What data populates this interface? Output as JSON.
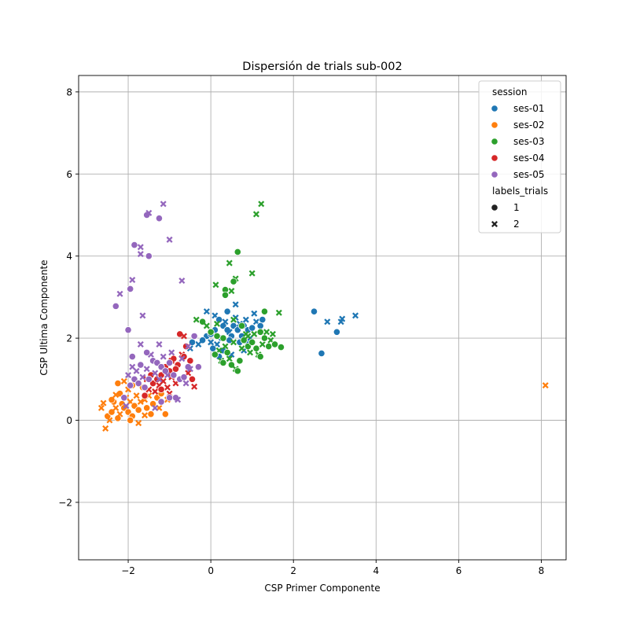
{
  "chart_data": {
    "type": "scatter",
    "title": "Dispersión de trials sub-002",
    "xlabel": "CSP Primer Componente",
    "ylabel": "CSP Ultima Componente",
    "xlim": [
      -3.2,
      8.6
    ],
    "ylim": [
      -3.4,
      8.4
    ],
    "x_ticks": [
      -2,
      0,
      2,
      4,
      6,
      8
    ],
    "y_ticks": [
      -2,
      0,
      2,
      4,
      6,
      8
    ],
    "x_tick_labels": [
      "−2",
      "0",
      "2",
      "4",
      "6",
      "8"
    ],
    "y_tick_labels": [
      "−2",
      "0",
      "2",
      "4",
      "6",
      "8"
    ],
    "grid": true,
    "legend": {
      "placement": "top-right",
      "hue_title": "session",
      "style_title": "labels_trials",
      "style_entries": [
        {
          "label": "1",
          "marker": "circle"
        },
        {
          "label": "2",
          "marker": "x"
        }
      ]
    },
    "series": [
      {
        "name": "ses-01",
        "color": "#1f77b4",
        "points": [
          [
            0.1,
            2.55,
            2
          ],
          [
            0.2,
            2.45,
            1
          ],
          [
            0.3,
            2.3,
            1
          ],
          [
            0.35,
            2.4,
            2
          ],
          [
            0.4,
            2.2,
            1
          ],
          [
            0.45,
            2.15,
            2
          ],
          [
            0.5,
            2.05,
            1
          ],
          [
            0.55,
            2.3,
            1
          ],
          [
            0.6,
            2.5,
            2
          ],
          [
            0.65,
            2.2,
            1
          ],
          [
            0.7,
            2.35,
            2
          ],
          [
            0.75,
            2.05,
            1
          ],
          [
            0.8,
            2.3,
            1
          ],
          [
            0.85,
            2.45,
            2
          ],
          [
            0.9,
            2.2,
            1
          ],
          [
            0.95,
            2.0,
            2
          ],
          [
            1.0,
            2.25,
            1
          ],
          [
            1.05,
            2.6,
            2
          ],
          [
            1.1,
            2.4,
            2
          ],
          [
            1.2,
            2.3,
            1
          ],
          [
            1.25,
            2.45,
            1
          ],
          [
            0.25,
            2.0,
            1
          ],
          [
            0.15,
            1.85,
            2
          ],
          [
            0.05,
            1.75,
            1
          ],
          [
            0.0,
            1.9,
            2
          ],
          [
            -0.1,
            2.05,
            1
          ],
          [
            -0.2,
            1.95,
            1
          ],
          [
            -0.3,
            1.85,
            2
          ],
          [
            -0.45,
            1.9,
            1
          ],
          [
            -0.5,
            1.75,
            2
          ],
          [
            0.6,
            2.82,
            2
          ],
          [
            0.4,
            2.65,
            1
          ],
          [
            0.3,
            1.7,
            1
          ],
          [
            0.5,
            1.6,
            2
          ],
          [
            0.2,
            1.55,
            1
          ],
          [
            0.7,
            1.9,
            1
          ],
          [
            0.1,
            2.2,
            1
          ],
          [
            0.0,
            2.1,
            1
          ],
          [
            -0.1,
            2.65,
            2
          ],
          [
            0.45,
            1.95,
            1
          ],
          [
            0.8,
            1.7,
            2
          ],
          [
            0.9,
            1.85,
            1
          ],
          [
            2.5,
            2.65,
            1
          ],
          [
            2.68,
            1.63,
            1
          ],
          [
            2.82,
            2.4,
            2
          ],
          [
            3.05,
            2.15,
            1
          ],
          [
            3.15,
            2.4,
            2
          ],
          [
            3.18,
            2.47,
            2
          ],
          [
            3.5,
            2.55,
            2
          ]
        ]
      },
      {
        "name": "ses-02",
        "color": "#ff7f0e",
        "points": [
          [
            -2.65,
            0.3,
            2
          ],
          [
            -2.6,
            0.42,
            2
          ],
          [
            -2.55,
            -0.2,
            2
          ],
          [
            -2.5,
            0.1,
            1
          ],
          [
            -2.45,
            0.0,
            2
          ],
          [
            -2.4,
            0.2,
            1
          ],
          [
            -2.35,
            0.45,
            1
          ],
          [
            -2.3,
            0.3,
            2
          ],
          [
            -2.25,
            0.05,
            1
          ],
          [
            -2.2,
            0.15,
            2
          ],
          [
            -2.15,
            0.4,
            1
          ],
          [
            -2.1,
            0.3,
            1
          ],
          [
            -2.05,
            0.55,
            2
          ],
          [
            -2.0,
            0.2,
            1
          ],
          [
            -1.95,
            0.45,
            2
          ],
          [
            -1.9,
            0.1,
            1
          ],
          [
            -1.85,
            0.35,
            1
          ],
          [
            -1.8,
            0.6,
            2
          ],
          [
            -1.75,
            0.25,
            1
          ],
          [
            -1.7,
            0.45,
            2
          ],
          [
            -1.65,
            0.8,
            1
          ],
          [
            -1.6,
            0.5,
            2
          ],
          [
            -1.55,
            0.3,
            1
          ],
          [
            -1.5,
            0.6,
            2
          ],
          [
            -1.45,
            0.15,
            1
          ],
          [
            -1.4,
            0.4,
            1
          ],
          [
            -1.35,
            0.7,
            2
          ],
          [
            -1.3,
            0.55,
            1
          ],
          [
            -1.25,
            0.3,
            2
          ],
          [
            -1.2,
            0.65,
            1
          ],
          [
            -1.1,
            0.15,
            1
          ],
          [
            -1.05,
            0.5,
            2
          ],
          [
            -2.25,
            0.9,
            1
          ],
          [
            -2.1,
            0.95,
            2
          ],
          [
            -2.2,
            0.65,
            1
          ],
          [
            -2.0,
            0.75,
            2
          ],
          [
            -1.9,
            0.85,
            1
          ],
          [
            -1.75,
            -0.07,
            2
          ],
          [
            -2.4,
            0.5,
            1
          ],
          [
            -2.3,
            0.62,
            2
          ],
          [
            -1.95,
            0.0,
            1
          ],
          [
            -1.6,
            0.12,
            2
          ],
          [
            8.1,
            0.85,
            2
          ]
        ]
      },
      {
        "name": "ses-03",
        "color": "#2ca02c",
        "points": [
          [
            0.3,
            2.0,
            1
          ],
          [
            0.35,
            1.8,
            2
          ],
          [
            0.4,
            1.65,
            1
          ],
          [
            0.45,
            1.5,
            2
          ],
          [
            0.5,
            1.35,
            1
          ],
          [
            0.55,
            1.9,
            2
          ],
          [
            0.6,
            1.25,
            2
          ],
          [
            0.65,
            1.2,
            1
          ],
          [
            0.7,
            1.45,
            1
          ],
          [
            0.75,
            1.75,
            2
          ],
          [
            0.8,
            1.95,
            1
          ],
          [
            0.85,
            2.1,
            2
          ],
          [
            0.9,
            1.8,
            1
          ],
          [
            0.95,
            1.65,
            2
          ],
          [
            1.0,
            1.9,
            1
          ],
          [
            1.05,
            2.1,
            2
          ],
          [
            1.1,
            1.75,
            1
          ],
          [
            1.15,
            1.6,
            2
          ],
          [
            1.2,
            1.55,
            1
          ],
          [
            1.25,
            1.85,
            2
          ],
          [
            1.3,
            2.0,
            1
          ],
          [
            1.35,
            2.15,
            2
          ],
          [
            1.4,
            1.8,
            1
          ],
          [
            1.45,
            1.95,
            2
          ],
          [
            1.5,
            2.1,
            2
          ],
          [
            1.55,
            1.85,
            1
          ],
          [
            1.7,
            1.78,
            1
          ],
          [
            1.65,
            2.62,
            2
          ],
          [
            1.3,
            2.65,
            1
          ],
          [
            1.0,
            3.58,
            2
          ],
          [
            1.1,
            5.02,
            2
          ],
          [
            1.22,
            5.27,
            2
          ],
          [
            0.65,
            4.1,
            1
          ],
          [
            0.6,
            3.45,
            2
          ],
          [
            0.55,
            3.38,
            1
          ],
          [
            0.5,
            3.15,
            2
          ],
          [
            0.45,
            3.83,
            2
          ],
          [
            0.35,
            3.18,
            1
          ],
          [
            0.35,
            3.05,
            1
          ],
          [
            0.12,
            3.3,
            2
          ],
          [
            -0.35,
            2.45,
            2
          ],
          [
            -0.2,
            2.4,
            1
          ],
          [
            -0.1,
            2.3,
            2
          ],
          [
            0.0,
            2.15,
            1
          ],
          [
            0.15,
            2.05,
            1
          ],
          [
            0.2,
            1.7,
            2
          ],
          [
            0.1,
            1.6,
            1
          ],
          [
            0.25,
            1.45,
            2
          ],
          [
            0.3,
            1.4,
            1
          ],
          [
            0.15,
            2.35,
            2
          ],
          [
            0.55,
            2.45,
            2
          ],
          [
            0.75,
            2.3,
            1
          ],
          [
            0.9,
            2.05,
            2
          ],
          [
            1.2,
            2.15,
            1
          ]
        ]
      },
      {
        "name": "ses-04",
        "color": "#d62728",
        "points": [
          [
            -1.6,
            0.6,
            1
          ],
          [
            -1.5,
            0.75,
            2
          ],
          [
            -1.4,
            0.9,
            1
          ],
          [
            -1.35,
            0.7,
            2
          ],
          [
            -1.3,
            1.0,
            1
          ],
          [
            -1.25,
            0.85,
            2
          ],
          [
            -1.2,
            1.1,
            1
          ],
          [
            -1.15,
            0.95,
            2
          ],
          [
            -1.1,
            1.3,
            1
          ],
          [
            -1.05,
            0.8,
            2
          ],
          [
            -1.0,
            1.2,
            1
          ],
          [
            -0.95,
            1.05,
            2
          ],
          [
            -0.9,
            1.5,
            1
          ],
          [
            -0.85,
            0.9,
            2
          ],
          [
            -0.8,
            1.35,
            1
          ],
          [
            -0.75,
            2.1,
            1
          ],
          [
            -0.7,
            1.6,
            2
          ],
          [
            -0.65,
            1.55,
            1
          ],
          [
            -0.6,
            1.8,
            1
          ],
          [
            -0.55,
            1.15,
            2
          ],
          [
            -0.5,
            1.45,
            1
          ],
          [
            -0.45,
            1.0,
            1
          ],
          [
            -0.4,
            0.82,
            2
          ],
          [
            -1.45,
            1.1,
            1
          ],
          [
            -1.55,
            1.0,
            2
          ],
          [
            -1.2,
            0.75,
            1
          ],
          [
            -1.0,
            0.65,
            2
          ],
          [
            -0.95,
            1.45,
            2
          ],
          [
            -0.85,
            1.25,
            1
          ],
          [
            -0.65,
            2.05,
            2
          ]
        ]
      },
      {
        "name": "ses-05",
        "color": "#9467bd",
        "points": [
          [
            -2.0,
            1.1,
            2
          ],
          [
            -1.95,
            0.85,
            1
          ],
          [
            -1.9,
            1.3,
            2
          ],
          [
            -1.85,
            1.0,
            1
          ],
          [
            -1.8,
            1.2,
            2
          ],
          [
            -1.75,
            0.9,
            1
          ],
          [
            -1.7,
            1.35,
            1
          ],
          [
            -1.65,
            1.05,
            2
          ],
          [
            -1.6,
            0.8,
            1
          ],
          [
            -1.55,
            1.25,
            2
          ],
          [
            -1.5,
            1.0,
            1
          ],
          [
            -1.45,
            1.6,
            2
          ],
          [
            -1.4,
            1.45,
            1
          ],
          [
            -1.35,
            1.15,
            2
          ],
          [
            -1.3,
            1.4,
            1
          ],
          [
            -1.25,
            1.0,
            2
          ],
          [
            -1.2,
            1.3,
            1
          ],
          [
            -1.15,
            1.55,
            2
          ],
          [
            -1.1,
            1.2,
            1
          ],
          [
            -1.05,
            1.1,
            2
          ],
          [
            -1.0,
            1.4,
            1
          ],
          [
            -0.95,
            1.65,
            2
          ],
          [
            -0.9,
            1.1,
            1
          ],
          [
            -0.85,
            0.55,
            1
          ],
          [
            -0.8,
            0.5,
            2
          ],
          [
            -0.75,
            1.0,
            1
          ],
          [
            -0.7,
            1.5,
            2
          ],
          [
            -0.65,
            1.05,
            1
          ],
          [
            -0.6,
            0.9,
            2
          ],
          [
            -0.55,
            1.3,
            1
          ],
          [
            -0.5,
            1.25,
            2
          ],
          [
            -2.1,
            0.55,
            1
          ],
          [
            -2.05,
            0.35,
            2
          ],
          [
            -1.9,
            1.55,
            1
          ],
          [
            -1.7,
            1.85,
            2
          ],
          [
            -1.55,
            1.65,
            1
          ],
          [
            -1.25,
            1.85,
            2
          ],
          [
            -1.2,
            0.45,
            1
          ],
          [
            -1.35,
            0.3,
            2
          ],
          [
            -2.3,
            2.78,
            1
          ],
          [
            -2.2,
            3.08,
            2
          ],
          [
            -2.0,
            2.2,
            1
          ],
          [
            -1.95,
            3.2,
            1
          ],
          [
            -1.9,
            3.42,
            2
          ],
          [
            -1.65,
            2.55,
            2
          ],
          [
            -1.85,
            4.27,
            1
          ],
          [
            -1.7,
            4.05,
            2
          ],
          [
            -1.7,
            4.22,
            2
          ],
          [
            -1.5,
            4.0,
            1
          ],
          [
            -1.55,
            5.0,
            1
          ],
          [
            -1.5,
            5.05,
            2
          ],
          [
            -1.25,
            4.92,
            1
          ],
          [
            -1.15,
            5.27,
            2
          ],
          [
            -1.0,
            4.4,
            2
          ],
          [
            -0.7,
            3.4,
            2
          ],
          [
            -0.4,
            2.05,
            1
          ],
          [
            -0.55,
            1.8,
            2
          ],
          [
            -1.0,
            0.55,
            1
          ],
          [
            -0.3,
            1.3,
            1
          ]
        ]
      }
    ]
  }
}
